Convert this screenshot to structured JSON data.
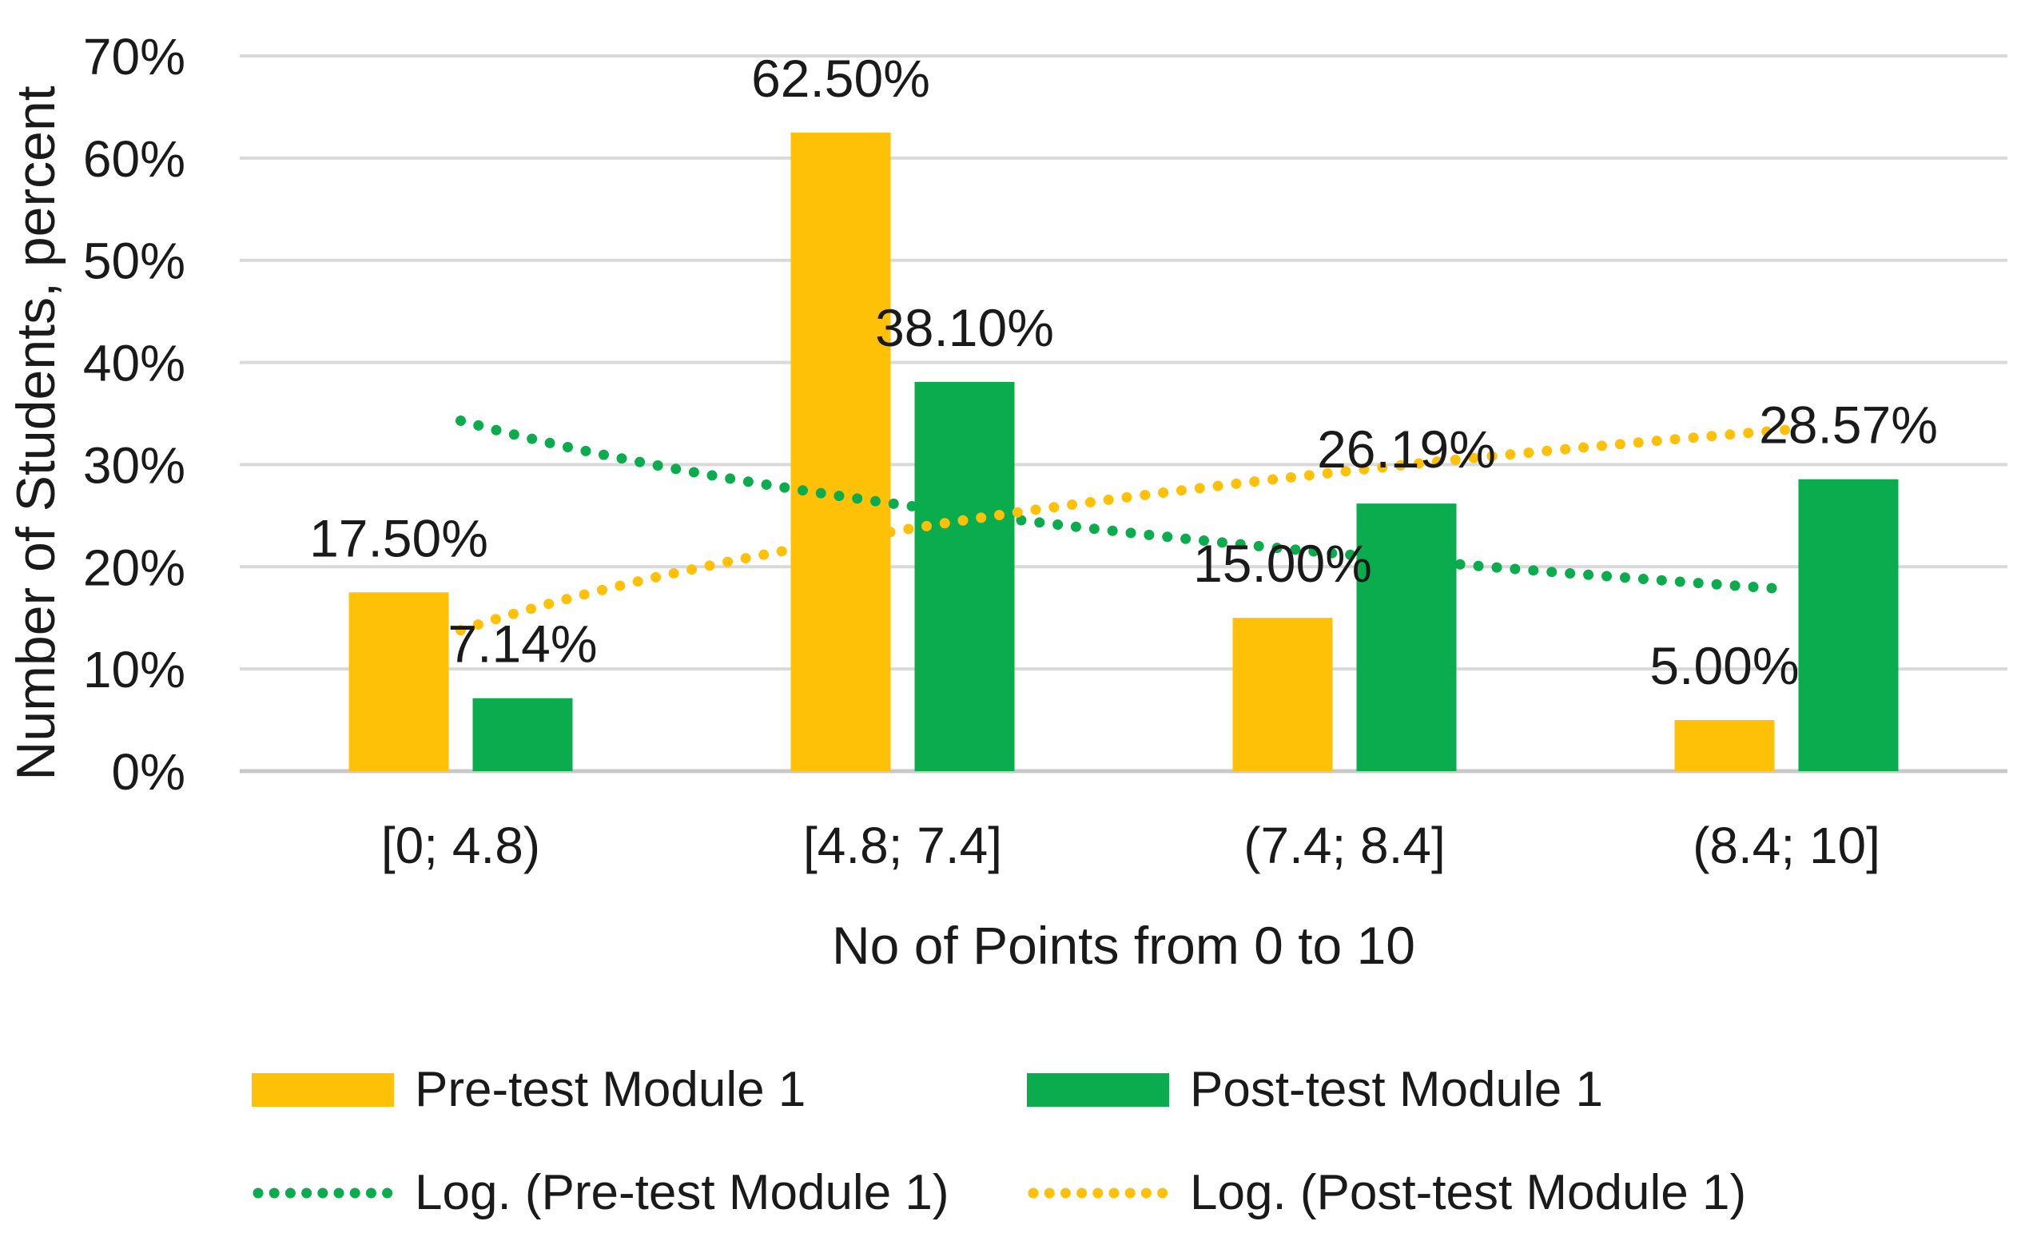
{
  "chart_data": {
    "type": "bar",
    "title": "",
    "xlabel": "No of Points from 0 to 10",
    "ylabel": "Number of Students, percent",
    "categories": [
      "[0; 4.8)",
      "[4.8; 7.4]",
      "(7.4; 8.4]",
      "(8.4; 10]"
    ],
    "series": [
      {
        "name": "Pre-test Module 1",
        "color": "#FFC107",
        "values": [
          17.5,
          62.5,
          15.0,
          5.0
        ],
        "labels": [
          "17.50%",
          "62.50%",
          "15.00%",
          "5.00%"
        ]
      },
      {
        "name": "Post-test Module 1",
        "color": "#0BAC4E",
        "values": [
          7.14,
          38.1,
          26.19,
          28.57
        ],
        "labels": [
          "7.14%",
          "38.10%",
          "26.19%",
          "28.57%"
        ]
      }
    ],
    "trendlines": [
      {
        "name": "Log. (Pre-test Module 1)",
        "color": "#0BAC4E",
        "style": "dotted",
        "fit": "logarithmic",
        "log_fit": {
          "a": 34.3,
          "b": -11.9
        },
        "points": [
          34.3,
          26.1,
          21.2,
          17.8
        ]
      },
      {
        "name": "Log. (Post-test Module 1)",
        "color": "#FFC107",
        "style": "dotted",
        "fit": "logarithmic",
        "log_fit": {
          "a": 13.8,
          "b": 14.14
        },
        "points": [
          13.8,
          23.6,
          29.3,
          33.4
        ]
      }
    ],
    "y_axis": {
      "min": 0,
      "max": 70,
      "step": 10,
      "tick_labels": [
        "0%",
        "10%",
        "20%",
        "30%",
        "40%",
        "50%",
        "60%",
        "70%"
      ],
      "grid": true
    },
    "legend_position": "bottom"
  },
  "legend": {
    "items": [
      {
        "label": "Pre-test Module 1",
        "swatch": "bar",
        "color": "#FFC107"
      },
      {
        "label": "Post-test Module 1",
        "swatch": "bar",
        "color": "#0BAC4E"
      },
      {
        "label": "Log. (Pre-test Module 1)",
        "swatch": "dotted-line",
        "color": "#0BAC4E"
      },
      {
        "label": "Log. (Post-test Module 1)",
        "swatch": "dotted-line",
        "color": "#FFC107"
      }
    ]
  },
  "colors": {
    "grid": "#D9D9D9",
    "axis_line": "#C8C8C8",
    "text": "#1A1A1A"
  }
}
